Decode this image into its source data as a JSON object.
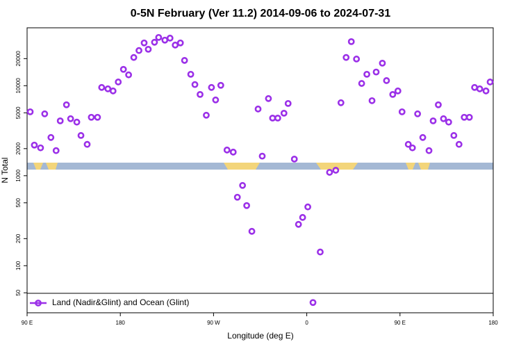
{
  "chart_data": {
    "type": "scatter",
    "title": "0-5N February (Ver 11.2)   2014-09-06 to 2024-07-31",
    "x_label": "Longitude (deg E)",
    "y_label": "N Total",
    "log_y": true,
    "legend": "bottom-left",
    "xlim": [
      90,
      540
    ],
    "ylim": [
      30,
      44000
    ],
    "xticks": [
      {
        "value": 90,
        "label": "90 E"
      },
      180,
      {
        "value": 270,
        "label": "90 W"
      },
      {
        "value": 360,
        "label": "0"
      },
      {
        "value": 450,
        "label": "90 E"
      },
      {
        "value": 540,
        "label": "180"
      }
    ],
    "yticks": [
      50,
      100,
      200,
      500,
      1000,
      2000,
      5000,
      10000,
      20000
    ],
    "x": [
      93,
      97,
      103,
      107,
      113,
      118,
      122,
      128,
      132,
      138,
      142,
      148,
      152,
      158,
      162,
      168,
      173,
      178,
      183,
      188,
      193,
      198,
      203,
      207,
      213,
      217,
      223,
      228,
      233,
      238,
      242,
      248,
      252,
      257,
      263,
      268,
      272,
      277,
      283,
      289,
      293,
      298,
      302,
      307,
      313,
      317,
      323,
      327,
      332,
      338,
      342,
      348,
      352,
      356,
      361,
      366,
      373,
      382,
      388,
      393,
      398,
      403,
      408,
      413,
      418,
      423,
      427,
      433,
      437,
      443,
      448,
      452,
      458,
      462,
      467,
      472,
      478,
      482,
      487,
      492,
      497,
      502,
      507,
      512,
      517,
      522,
      527,
      533,
      537
    ],
    "series": [
      {
        "name": "Land (Nadir&Glint) and Ocean (Glint)",
        "color": "#9b30e8",
        "values": [
          5130,
          2190,
          2040,
          4870,
          2660,
          1900,
          4070,
          6140,
          4300,
          3940,
          2800,
          2230,
          4460,
          4460,
          9570,
          9230,
          8750,
          11000,
          15200,
          13200,
          20600,
          24600,
          29900,
          25400,
          30400,
          34400,
          32100,
          33800,
          28300,
          29900,
          19100,
          13400,
          10300,
          8000,
          4700,
          9570,
          6950,
          10100,
          1930,
          1830,
          577,
          780,
          466,
          241,
          5510,
          1650,
          7200,
          4370,
          4370,
          4950,
          6350,
          1530,
          288,
          344,
          450,
          39,
          142,
          1090,
          1150,
          6470,
          20600,
          30900,
          19800,
          10600,
          13400,
          6820,
          14200,
          17800,
          11400,
          8000,
          8750,
          5130,
          2230,
          2040,
          4870,
          2660,
          1900,
          4070,
          6140,
          4300,
          3940,
          2800,
          2230,
          4460,
          4460,
          9570,
          9230,
          8750,
          11000
        ]
      }
    ]
  }
}
